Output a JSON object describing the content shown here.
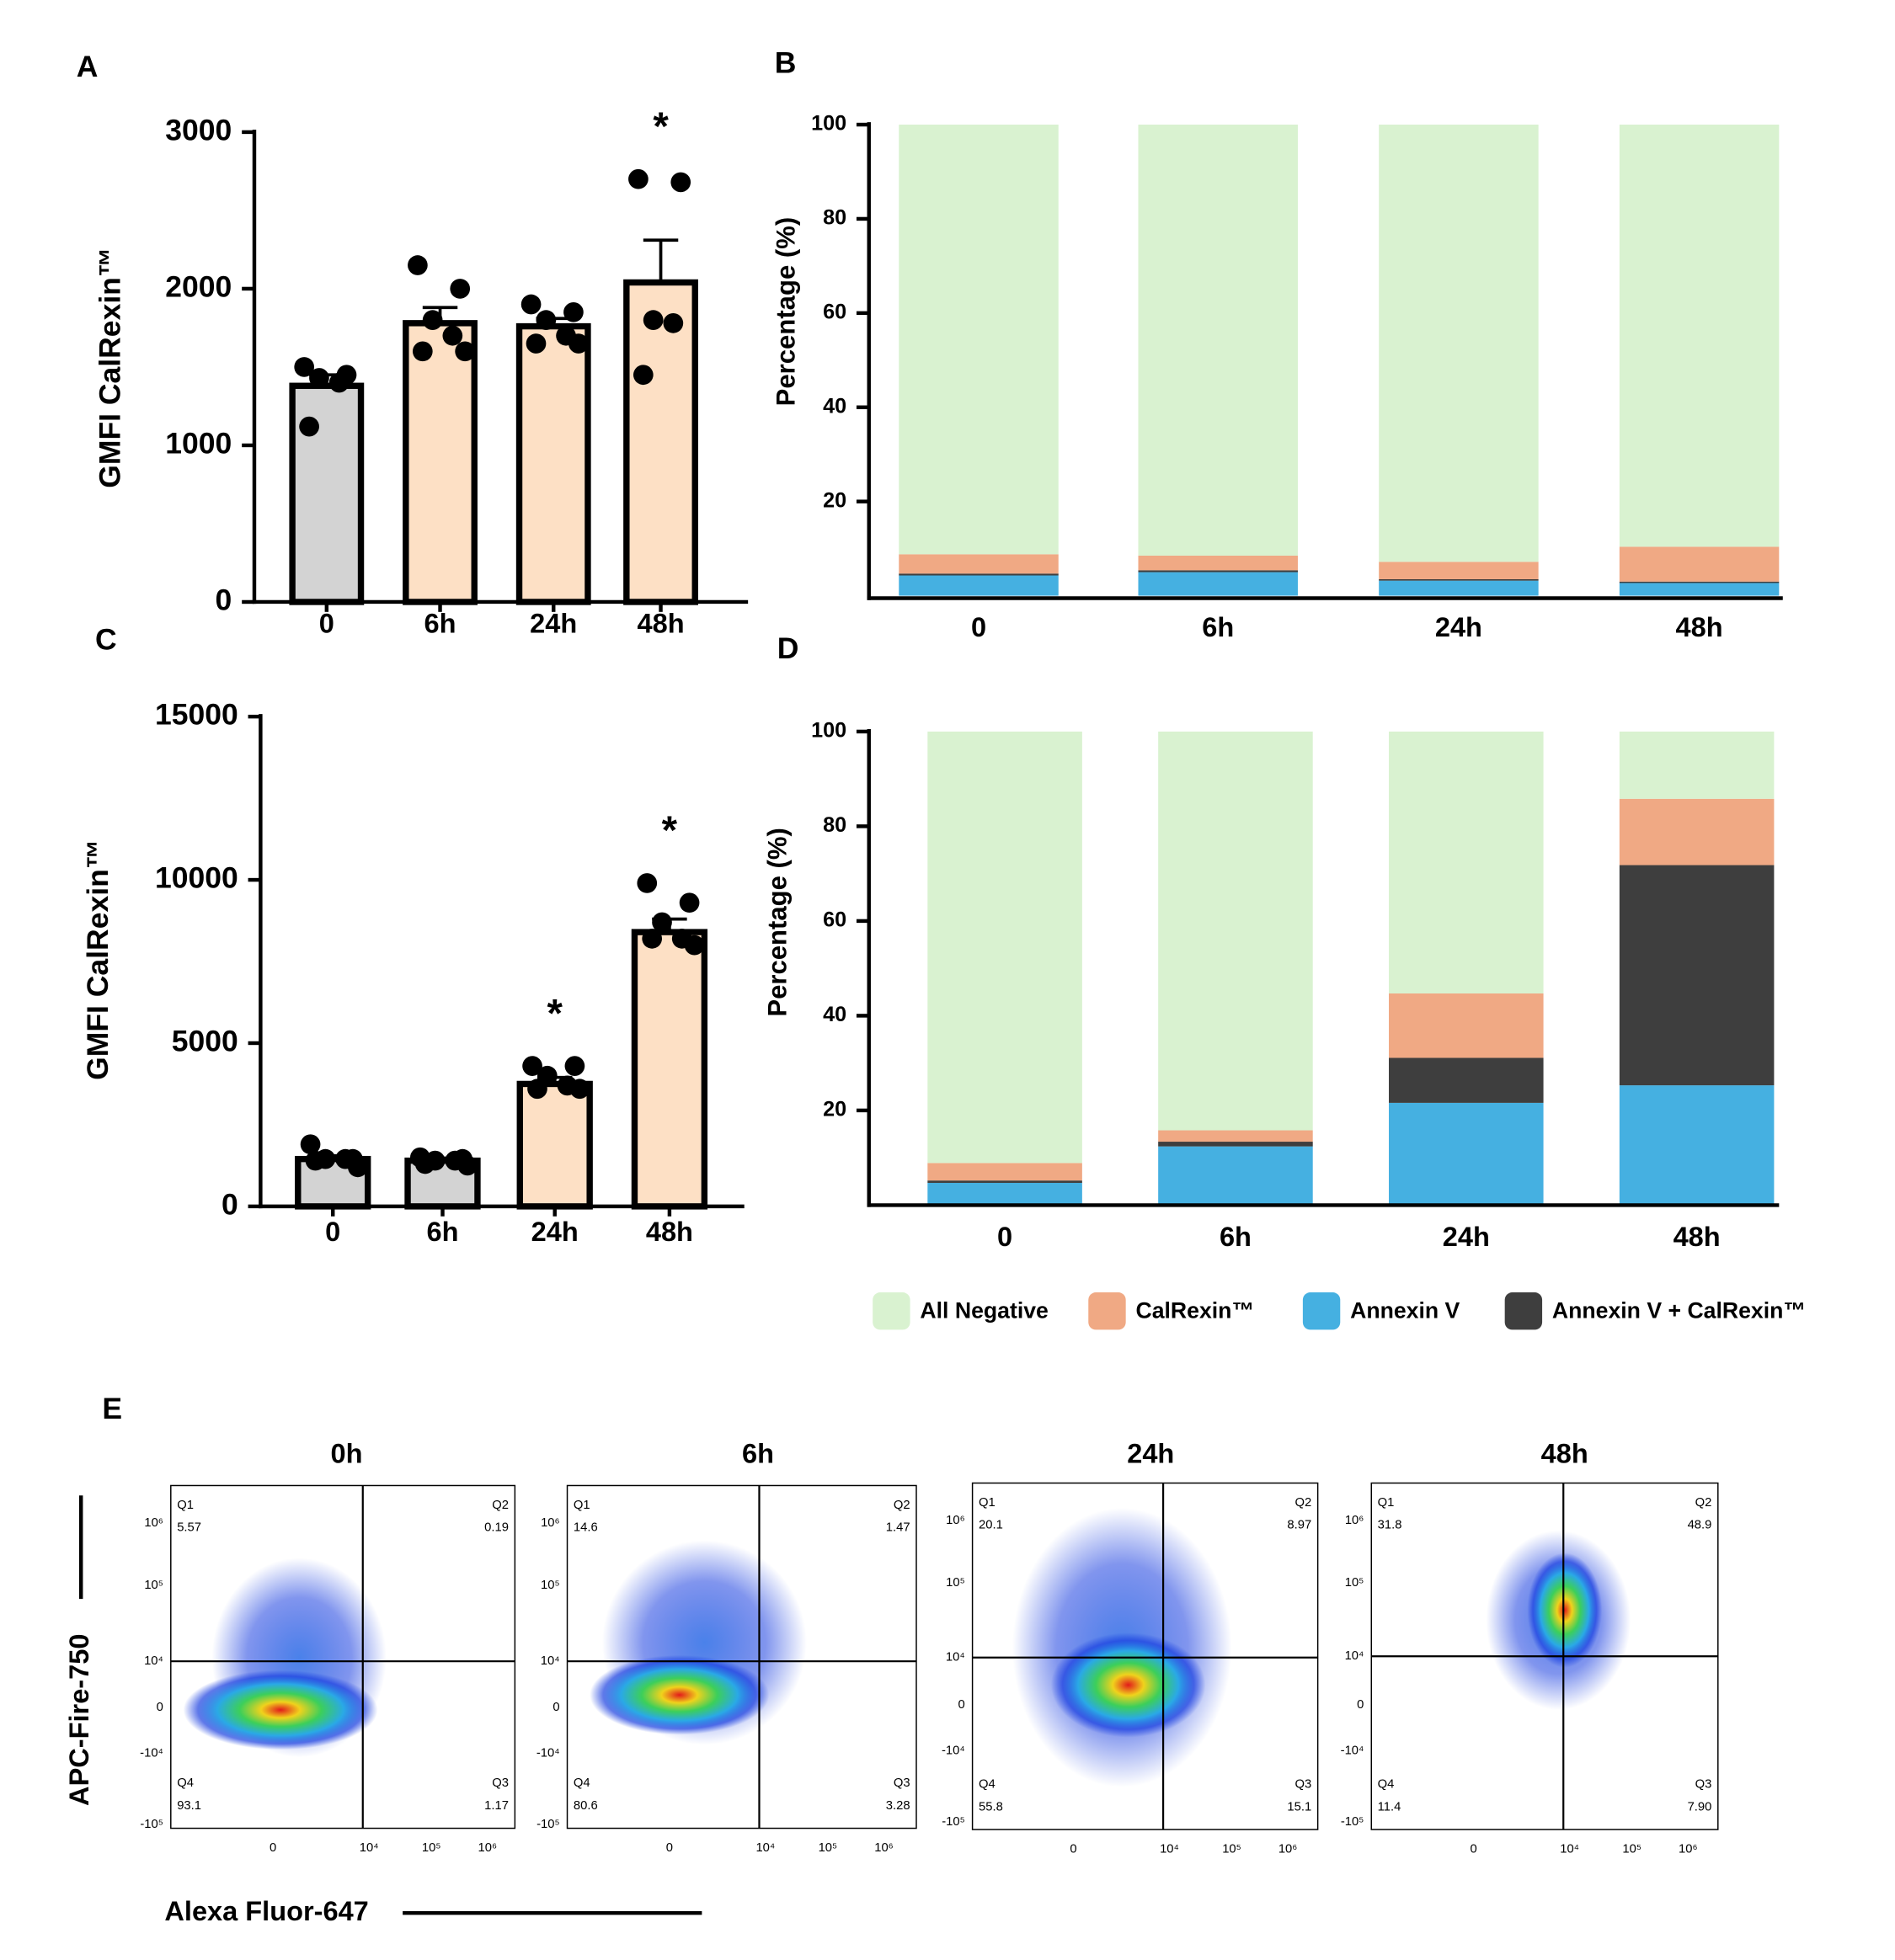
{
  "chart_data": [
    {
      "type": "bar",
      "panel": "A",
      "ylabel": "GMFI CalRexin™",
      "categories": [
        "0",
        "6h",
        "24h",
        "48h"
      ],
      "values": [
        1380,
        1780,
        1760,
        2040
      ],
      "errors": [
        70,
        100,
        50,
        270
      ],
      "points": [
        [
          1500,
          1450,
          1430,
          1400,
          1120
        ],
        [
          2150,
          2000,
          1800,
          1700,
          1600,
          1600
        ],
        [
          1900,
          1850,
          1800,
          1700,
          1650,
          1650
        ],
        [
          2700,
          2680,
          1800,
          1780,
          1450
        ]
      ],
      "colors": [
        "#d3d3d3",
        "#fde0c5",
        "#fde0c5",
        "#fde0c5"
      ],
      "annotations": [
        {
          "category": "48h",
          "text": "*"
        }
      ],
      "ylim": [
        0,
        3000
      ],
      "yticks": [
        0,
        1000,
        2000,
        3000
      ]
    },
    {
      "type": "stacked_bar",
      "panel": "B",
      "ylabel": "Percentage (%)",
      "categories": [
        "0",
        "6h",
        "24h",
        "48h"
      ],
      "series": [
        {
          "color": "#45b0e1",
          "values": [
            4.3,
            5.0,
            3.2,
            2.7
          ]
        },
        {
          "color": "#3e3e3e",
          "values": [
            0.4,
            0.4,
            0.3,
            0.3
          ]
        },
        {
          "color": "#f0a984",
          "values": [
            4.1,
            3.1,
            3.7,
            7.4
          ]
        },
        {
          "color": "#d9f2d0",
          "values": [
            91.2,
            91.5,
            92.8,
            89.6
          ]
        }
      ],
      "ylim": [
        0,
        100
      ],
      "yticks": [
        20,
        40,
        60,
        80,
        100
      ]
    },
    {
      "type": "bar",
      "panel": "C",
      "ylabel": "GMFI CalRexin™",
      "categories": [
        "0",
        "6h",
        "24h",
        "48h"
      ],
      "values": [
        1450,
        1400,
        3750,
        8400
      ],
      "errors": [
        100,
        80,
        200,
        400
      ],
      "points": [
        [
          1900,
          1450,
          1450,
          1450,
          1400,
          1200
        ],
        [
          1500,
          1450,
          1400,
          1400,
          1300,
          1250
        ],
        [
          4300,
          4300,
          4000,
          3700,
          3600,
          3600
        ],
        [
          9900,
          9300,
          8700,
          8200,
          8200,
          8000
        ]
      ],
      "colors": [
        "#d3d3d3",
        "#d3d3d3",
        "#fde0c5",
        "#fde0c5"
      ],
      "annotations": [
        {
          "category": "24h",
          "text": "*"
        },
        {
          "category": "48h",
          "text": "*"
        }
      ],
      "ylim": [
        0,
        15000
      ],
      "yticks": [
        0,
        5000,
        10000,
        15000
      ]
    },
    {
      "type": "stacked_bar",
      "panel": "D",
      "ylabel": "Percentage (%)",
      "categories": [
        "0",
        "6h",
        "24h",
        "48h"
      ],
      "series": [
        {
          "name": "Annexin V",
          "color": "#45b0e1",
          "values": [
            4.7,
            12.4,
            21.6,
            25.3
          ]
        },
        {
          "name": "Annexin V + CalRexin™",
          "color": "#3e3e3e",
          "values": [
            0.5,
            1.0,
            9.5,
            46.5
          ]
        },
        {
          "name": "CalRexin™",
          "color": "#f0a984",
          "values": [
            3.7,
            2.4,
            13.6,
            14.0
          ]
        },
        {
          "name": "All Negative",
          "color": "#d9f2d0",
          "values": [
            91.1,
            84.2,
            55.3,
            14.2
          ]
        }
      ],
      "legend_order": [
        3,
        2,
        0,
        1
      ],
      "ylim": [
        0,
        100
      ],
      "yticks": [
        20,
        40,
        60,
        80,
        100
      ]
    }
  ],
  "flow_panel": {
    "label": "E",
    "y_axis_label": "APC-Fire-750",
    "x_axis_label": "Alexa Fluor-647",
    "y_tick_labels": [
      "10⁶",
      "10⁵",
      "10⁴",
      "0",
      "-10⁴",
      "-10⁵"
    ],
    "x_tick_labels": [
      "0",
      "10⁴",
      "10⁵",
      "10⁶"
    ],
    "plots": [
      {
        "title": "0h",
        "quadrants": [
          {
            "name": "Q1",
            "value": "5.57"
          },
          {
            "name": "Q2",
            "value": "0.19"
          },
          {
            "name": "Q3",
            "value": "1.17"
          },
          {
            "name": "Q4",
            "value": "93.1"
          }
        ]
      },
      {
        "title": "6h",
        "quadrants": [
          {
            "name": "Q1",
            "value": "14.6"
          },
          {
            "name": "Q2",
            "value": "1.47"
          },
          {
            "name": "Q3",
            "value": "3.28"
          },
          {
            "name": "Q4",
            "value": "80.6"
          }
        ]
      },
      {
        "title": "24h",
        "quadrants": [
          {
            "name": "Q1",
            "value": "20.1"
          },
          {
            "name": "Q2",
            "value": "8.97"
          },
          {
            "name": "Q3",
            "value": "15.1"
          },
          {
            "name": "Q4",
            "value": "55.8"
          }
        ]
      },
      {
        "title": "48h",
        "quadrants": [
          {
            "name": "Q1",
            "value": "31.8"
          },
          {
            "name": "Q2",
            "value": "48.9"
          },
          {
            "name": "Q3",
            "value": "7.90"
          },
          {
            "name": "Q4",
            "value": "11.4"
          }
        ]
      }
    ]
  }
}
